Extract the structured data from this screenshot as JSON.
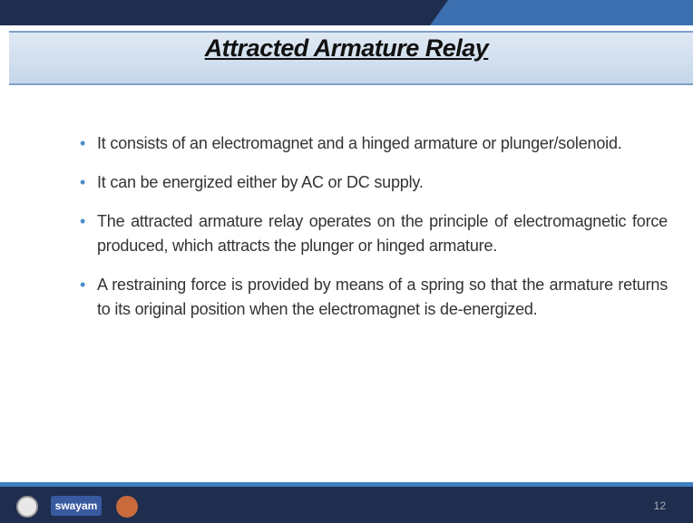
{
  "header": {
    "title": "Attracted Armature Relay"
  },
  "bullets": [
    "It consists of an electromagnet and a hinged armature or plunger/solenoid.",
    "It can be energized either by AC or DC supply.",
    "The attracted armature relay operates on the principle of electromagnetic force produced, which attracts the plunger or hinged armature.",
    "A restraining force is provided by means of a spring so that the armature returns to its original position when the electromagnet is de-energized."
  ],
  "footer": {
    "logo_text": "swayam",
    "page_number": "12"
  }
}
